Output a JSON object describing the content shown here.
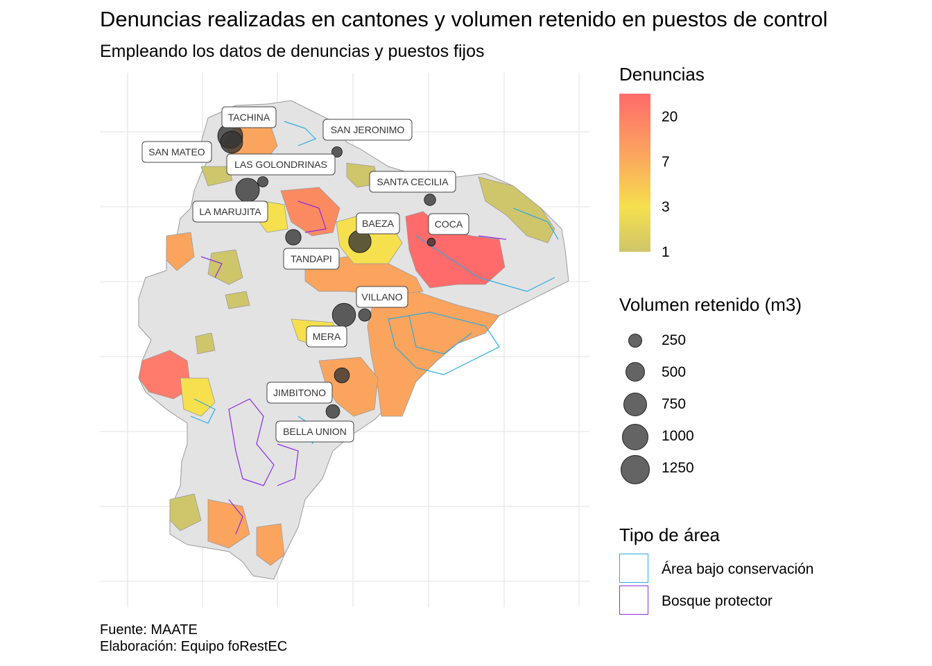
{
  "title": "Denuncias realizadas en cantones y volumen retenido en puestos de control",
  "subtitle": "Empleando los datos de denuncias y puestos fijos",
  "caption": {
    "source": "Fuente: MAATE",
    "author": "Elaboración: Equipo foRestEC"
  },
  "legend_denuncias": {
    "title": "Denuncias",
    "scale": "log",
    "ticks": [
      "20",
      "7",
      "3",
      "1"
    ],
    "colors": {
      "high": "#ff6b6b",
      "mid_high": "#fba45e",
      "mid": "#f6e04e",
      "low": "#cfc56a"
    }
  },
  "legend_volumen": {
    "title": "Volumen retenido (m3)",
    "entries": [
      {
        "label": "250",
        "value": 250
      },
      {
        "label": "500",
        "value": 500
      },
      {
        "label": "750",
        "value": 750
      },
      {
        "label": "1000",
        "value": 1000
      },
      {
        "label": "1250",
        "value": 1250
      }
    ]
  },
  "legend_tipo": {
    "title": "Tipo de área",
    "entries": [
      {
        "label": "Área bajo conservación",
        "color": "#29abe2"
      },
      {
        "label": "Bosque protector",
        "color": "#8a2be2"
      }
    ]
  },
  "colors": {
    "canton_no_data": "#e3e3e3",
    "canton_border": "#9a9a9a",
    "point_fill": "#333333",
    "grid": "#ebebeb"
  },
  "control_points": [
    {
      "name": "TACHINA",
      "volumen_m3": 1250
    },
    {
      "name": "SAN MATEO",
      "volumen_m3": 900
    },
    {
      "name": "SAN JERONIMO",
      "volumen_m3": 80
    },
    {
      "name": "LAS GOLONDRINAS",
      "volumen_m3": 80
    },
    {
      "name": "SANTA CECILIA",
      "volumen_m3": 120
    },
    {
      "name": "LA MARUJITA",
      "volumen_m3": 1100
    },
    {
      "name": "BAEZA",
      "volumen_m3": 950
    },
    {
      "name": "COCA",
      "volumen_m3": 20
    },
    {
      "name": "TANDAPI",
      "volumen_m3": 330
    },
    {
      "name": "VILLANO",
      "volumen_m3": 160
    },
    {
      "name": "MERA",
      "volumen_m3": 1050
    },
    {
      "name": "JIMBITONO",
      "volumen_m3": 300
    },
    {
      "name": "BELLA UNION",
      "volumen_m3": 220
    }
  ]
}
